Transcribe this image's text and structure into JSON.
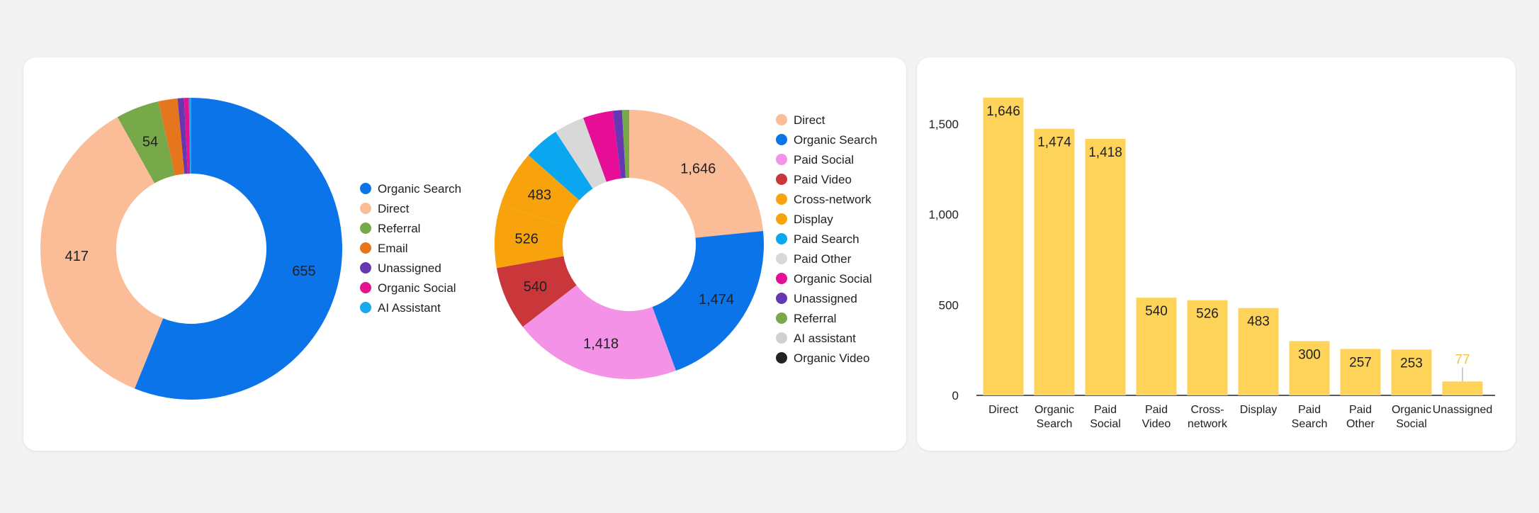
{
  "chart_data": [
    {
      "type": "pie",
      "variant": "donut",
      "slices": [
        {
          "label": "Organic Search",
          "value": 655,
          "color": "#0b74e8",
          "data_label": "655"
        },
        {
          "label": "Direct",
          "value": 417,
          "color": "#fbbc98",
          "data_label": "417"
        },
        {
          "label": "Referral",
          "value": 54,
          "color": "#77a94b",
          "data_label": "54"
        },
        {
          "label": "Email",
          "value": 24,
          "color": "#e6761e",
          "data_label": ""
        },
        {
          "label": "Unassigned",
          "value": 8,
          "color": "#6537b3",
          "data_label": ""
        },
        {
          "label": "Organic Social",
          "value": 6,
          "color": "#e3128e",
          "data_label": ""
        },
        {
          "label": "AI Assistant",
          "value": 3,
          "color": "#1aa8ec",
          "data_label": ""
        }
      ],
      "legend": [
        "Organic Search",
        "Direct",
        "Referral",
        "Email",
        "Unassigned",
        "Organic Social",
        "AI Assistant"
      ],
      "legend_placement": "right"
    },
    {
      "type": "pie",
      "variant": "donut",
      "slices": [
        {
          "label": "Direct",
          "value": 1646,
          "color": "#fbbc98",
          "data_label": "1,646"
        },
        {
          "label": "Organic Search",
          "value": 1474,
          "color": "#0b74e8",
          "data_label": "1,474"
        },
        {
          "label": "Paid Social",
          "value": 1418,
          "color": "#f392e6",
          "data_label": "1,418"
        },
        {
          "label": "Paid Video",
          "value": 540,
          "color": "#c9373a",
          "data_label": "540"
        },
        {
          "label": "Cross-network",
          "value": 526,
          "color": "#f9a30c",
          "data_label": "526"
        },
        {
          "label": "Display",
          "value": 483,
          "color": "#f9a30c",
          "data_label": "483"
        },
        {
          "label": "Paid Search",
          "value": 300,
          "color": "#0aa7f0",
          "data_label": ""
        },
        {
          "label": "Paid Other",
          "value": 257,
          "color": "#d8d8d8",
          "data_label": ""
        },
        {
          "label": "Organic Social",
          "value": 253,
          "color": "#e60e96",
          "data_label": ""
        },
        {
          "label": "Unassigned",
          "value": 77,
          "color": "#6537b3",
          "data_label": ""
        },
        {
          "label": "Referral",
          "value": 60,
          "color": "#77a94b",
          "data_label": ""
        }
      ],
      "legend": [
        {
          "label": "Direct",
          "color": "#fbbc98"
        },
        {
          "label": "Organic Search",
          "color": "#0b74e8"
        },
        {
          "label": "Paid Social",
          "color": "#f392e6"
        },
        {
          "label": "Paid Video",
          "color": "#c9373a"
        },
        {
          "label": "Cross-network",
          "color": "#f9a30c"
        },
        {
          "label": "Display",
          "color": "#f9a30c"
        },
        {
          "label": "Paid Search",
          "color": "#0aa7f0"
        },
        {
          "label": "Paid Other",
          "color": "#d8d8d8"
        },
        {
          "label": "Organic Social",
          "color": "#e60e96"
        },
        {
          "label": "Unassigned",
          "color": "#6537b3"
        },
        {
          "label": "Referral",
          "color": "#77a94b"
        },
        {
          "label": "AI assistant",
          "color": "#d0d0d0"
        },
        {
          "label": "Organic Video",
          "color": "#222222"
        }
      ],
      "legend_placement": "right"
    },
    {
      "type": "bar",
      "categories": [
        [
          "Direct"
        ],
        [
          "Organic",
          "Search"
        ],
        [
          "Paid",
          "Social"
        ],
        [
          "Paid",
          "Video"
        ],
        [
          "Cross-",
          "network"
        ],
        [
          "Display"
        ],
        [
          "Paid",
          "Search"
        ],
        [
          "Paid",
          "Other"
        ],
        [
          "Organic",
          "Social"
        ],
        [
          "Unassigned"
        ]
      ],
      "values": [
        1646,
        1474,
        1418,
        540,
        526,
        483,
        300,
        257,
        253,
        77
      ],
      "data_labels": [
        "1,646",
        "1,474",
        "1,418",
        "540",
        "526",
        "483",
        "300",
        "257",
        "253",
        "77"
      ],
      "ylim": [
        0,
        1700
      ],
      "yticks": [
        0,
        500,
        1000,
        1500
      ],
      "ytick_labels": [
        "0",
        "500",
        "1,000",
        "1,500"
      ],
      "grid": false,
      "bar_color": "#fdd35a",
      "outside_label_color": "#f4c542"
    }
  ]
}
